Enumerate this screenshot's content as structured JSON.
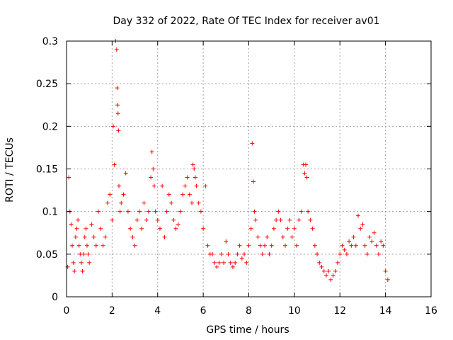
{
  "chart_data": {
    "type": "scatter",
    "title": "Day 332 of 2022, Rate Of TEC Index for receiver av01",
    "xlabel": "GPS time / hours",
    "ylabel": "ROTI / TECUs",
    "xlim": [
      0,
      16
    ],
    "ylim": [
      0,
      0.3
    ],
    "xticks": [
      "0",
      "2",
      "4",
      "6",
      "8",
      "10",
      "12",
      "14",
      "16"
    ],
    "yticks": [
      "0",
      "0.05",
      "0.1",
      "0.15",
      "0.2",
      "0.25",
      "0.3"
    ],
    "grid": true,
    "marker": "+",
    "color": "#ff0000",
    "series": [
      {
        "x": [
          0.05,
          0.1,
          0.15,
          0.2,
          0.25,
          0.3,
          0.35,
          0.4,
          0.45,
          0.5,
          0.55,
          0.6,
          0.65,
          0.7,
          0.75,
          0.8,
          0.85,
          0.9,
          0.95,
          1.0,
          1.1,
          1.2,
          1.3,
          1.4,
          1.5,
          1.6,
          1.7,
          1.8,
          1.9,
          2.0,
          2.05,
          2.1,
          2.15,
          2.2,
          2.22,
          2.24,
          2.26,
          2.28,
          2.3,
          2.35,
          2.4,
          2.5,
          2.6,
          2.7,
          2.8,
          2.9,
          3.0,
          3.1,
          3.2,
          3.3,
          3.4,
          3.5,
          3.6,
          3.7,
          3.75,
          3.8,
          3.85,
          3.9,
          4.0,
          4.1,
          4.2,
          4.3,
          4.4,
          4.5,
          4.6,
          4.7,
          4.8,
          4.9,
          5.0,
          5.1,
          5.2,
          5.3,
          5.4,
          5.5,
          5.55,
          5.6,
          5.65,
          5.7,
          5.8,
          5.9,
          6.0,
          6.1,
          6.2,
          6.3,
          6.4,
          6.5,
          6.6,
          6.7,
          6.8,
          6.9,
          7.0,
          7.1,
          7.2,
          7.3,
          7.4,
          7.5,
          7.6,
          7.7,
          7.8,
          7.9,
          8.0,
          8.1,
          8.15,
          8.2,
          8.25,
          8.3,
          8.4,
          8.5,
          8.6,
          8.7,
          8.8,
          8.9,
          9.0,
          9.1,
          9.2,
          9.3,
          9.4,
          9.5,
          9.6,
          9.7,
          9.8,
          9.9,
          10.0,
          10.1,
          10.2,
          10.3,
          10.4,
          10.45,
          10.5,
          10.55,
          10.6,
          10.7,
          10.8,
          10.9,
          11.0,
          11.1,
          11.2,
          11.3,
          11.4,
          11.5,
          11.6,
          11.7,
          11.8,
          11.9,
          12.0,
          12.1,
          12.2,
          12.3,
          12.4,
          12.5,
          12.6,
          12.7,
          12.8,
          12.9,
          13.0,
          13.1,
          13.2,
          13.3,
          13.4,
          13.5,
          13.6,
          13.7,
          13.8,
          13.9,
          14.0,
          14.1
        ],
        "y": [
          0.035,
          0.14,
          0.1,
          0.085,
          0.06,
          0.04,
          0.03,
          0.07,
          0.08,
          0.09,
          0.06,
          0.05,
          0.04,
          0.03,
          0.05,
          0.07,
          0.08,
          0.06,
          0.05,
          0.04,
          0.085,
          0.07,
          0.06,
          0.1,
          0.08,
          0.06,
          0.07,
          0.11,
          0.12,
          0.09,
          0.2,
          0.155,
          0.3,
          0.29,
          0.245,
          0.225,
          0.215,
          0.195,
          0.13,
          0.1,
          0.11,
          0.12,
          0.145,
          0.1,
          0.08,
          0.07,
          0.06,
          0.09,
          0.1,
          0.08,
          0.11,
          0.09,
          0.1,
          0.14,
          0.17,
          0.15,
          0.13,
          0.1,
          0.09,
          0.08,
          0.13,
          0.07,
          0.1,
          0.12,
          0.11,
          0.09,
          0.08,
          0.085,
          0.1,
          0.12,
          0.13,
          0.14,
          0.12,
          0.11,
          0.155,
          0.15,
          0.14,
          0.13,
          0.11,
          0.1,
          0.08,
          0.13,
          0.06,
          0.05,
          0.05,
          0.04,
          0.035,
          0.04,
          0.05,
          0.04,
          0.065,
          0.05,
          0.04,
          0.035,
          0.04,
          0.05,
          0.06,
          0.045,
          0.05,
          0.04,
          0.06,
          0.08,
          0.18,
          0.135,
          0.1,
          0.09,
          0.07,
          0.06,
          0.05,
          0.06,
          0.07,
          0.05,
          0.06,
          0.08,
          0.09,
          0.1,
          0.09,
          0.07,
          0.06,
          0.08,
          0.09,
          0.07,
          0.08,
          0.06,
          0.09,
          0.1,
          0.155,
          0.145,
          0.155,
          0.14,
          0.1,
          0.09,
          0.08,
          0.06,
          0.05,
          0.04,
          0.035,
          0.03,
          0.025,
          0.03,
          0.02,
          0.025,
          0.03,
          0.04,
          0.05,
          0.06,
          0.055,
          0.05,
          0.065,
          0.06,
          0.07,
          0.06,
          0.095,
          0.08,
          0.085,
          0.06,
          0.05,
          0.07,
          0.065,
          0.075,
          0.06,
          0.05,
          0.065,
          0.06,
          0.03,
          0.02
        ]
      }
    ]
  }
}
